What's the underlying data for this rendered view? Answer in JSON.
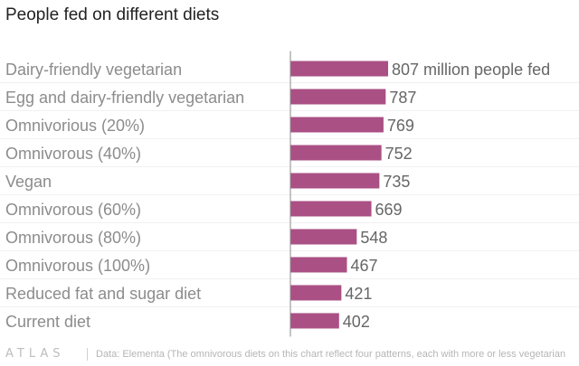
{
  "chart_data": {
    "type": "bar",
    "orientation": "horizontal",
    "title": "People fed on different diets",
    "categories": [
      "Dairy-friendly vegetarian",
      "Egg and dairy-friendly vegetarian",
      "Omnivorious (20%)",
      "Omnivorous (40%)",
      "Vegan",
      "Omnivorous (60%)",
      "Omnivorous (80%)",
      "Omnivorous (100%)",
      "Reduced fat and sugar diet",
      "Current diet"
    ],
    "values": [
      807,
      787,
      769,
      752,
      735,
      669,
      548,
      467,
      421,
      402
    ],
    "data_labels": [
      "807 million people fed",
      "787",
      "769",
      "752",
      "735",
      "669",
      "548",
      "467",
      "421",
      "402"
    ],
    "xlim": [
      0,
      807
    ],
    "grid": false,
    "bar_color": "#aa5084"
  },
  "footer": {
    "logo": "ATLAS",
    "source": "Data: Elementa (The omnivorous diets on this chart reflect four patterns, each with more or less vegetarian"
  }
}
